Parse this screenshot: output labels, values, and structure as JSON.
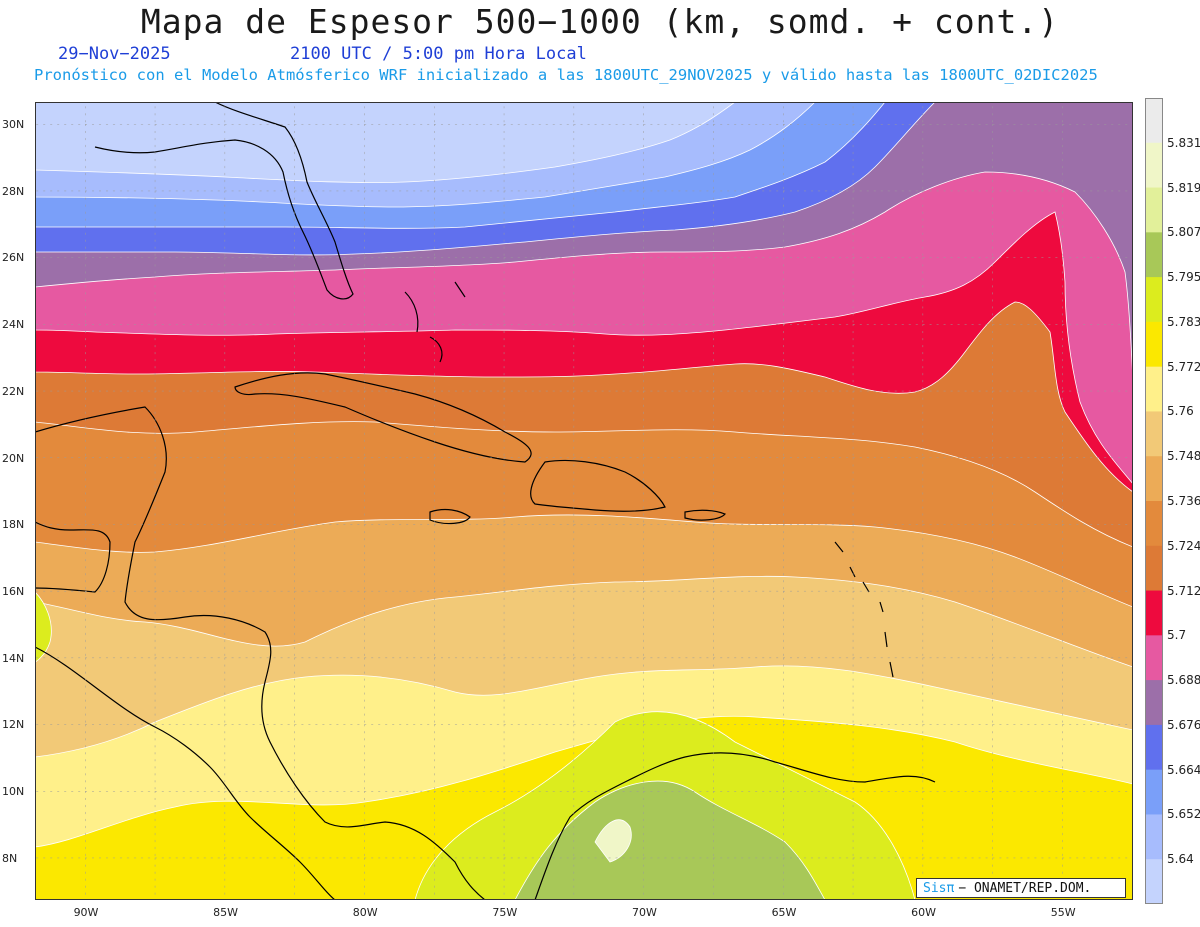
{
  "title": "Mapa de Espesor 500−1000 (km, somd. + cont.)",
  "date": "29−Nov−2025",
  "time": "2100 UTC / 5:00 pm Hora Local",
  "forecast_line": "Pronóstico con el Modelo Atmósferico WRF inicializado a las 1800UTC_29NOV2025 y válido hasta las  1800UTC_02DIC2025",
  "credit": {
    "brand": "Sisπ",
    "text": "− ONAMET/REP.DOM."
  },
  "lat_labels": [
    "30N",
    "28N",
    "26N",
    "24N",
    "22N",
    "20N",
    "18N",
    "16N",
    "14N",
    "12N",
    "10N",
    "8N"
  ],
  "lon_labels": [
    "90W",
    "85W",
    "80W",
    "75W",
    "70W",
    "65W",
    "60W",
    "55W"
  ],
  "colorbar": {
    "labels": [
      "5.831",
      "5.819",
      "5.807",
      "5.795",
      "5.783",
      "5.772",
      "5.76",
      "5.748",
      "5.736",
      "5.724",
      "5.712",
      "5.7",
      "5.688",
      "5.676",
      "5.664",
      "5.652",
      "5.64"
    ],
    "colors": [
      "#ebebeb",
      "#f0f6c8",
      "#e2f09a",
      "#a8c858",
      "#dcec1e",
      "#fbe800",
      "#fff08a",
      "#f2c977",
      "#ecab57",
      "#e38a3c",
      "#dd7a36",
      "#ee0a3e",
      "#e659a1",
      "#9c6fa9",
      "#6070ee",
      "#7a9ff9",
      "#a7bcfd",
      "#c4d3fd"
    ]
  }
}
